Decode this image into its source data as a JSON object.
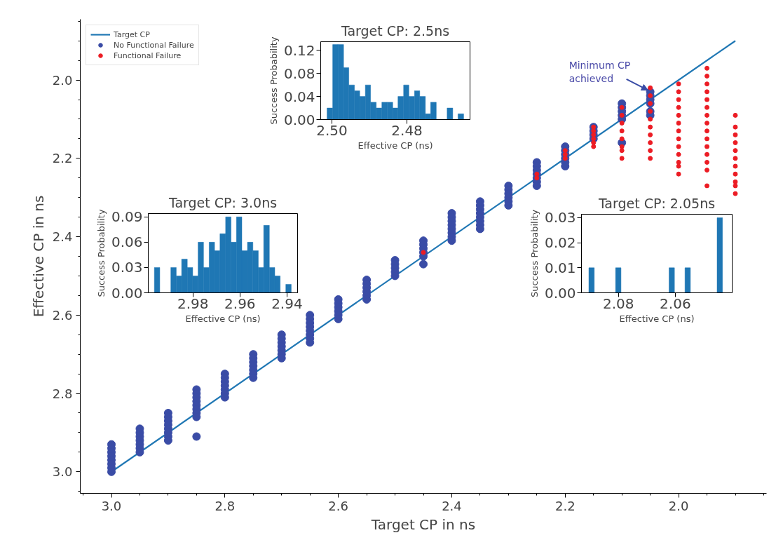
{
  "chart_data": [
    {
      "type": "scatter",
      "xlabel": "Target CP in ns",
      "ylabel": "Effective CP in ns",
      "xlim": [
        3.055,
        1.845
      ],
      "ylim": [
        3.055,
        1.845
      ],
      "legend": "top left",
      "xticks": [
        {
          "value": 3.05,
          "label": null
        },
        {
          "value": 3.0,
          "label": "3.0"
        },
        {
          "value": 2.95,
          "label": null
        },
        {
          "value": 2.9,
          "label": null
        },
        {
          "value": 2.85,
          "label": null
        },
        {
          "value": 2.8,
          "label": "2.8"
        },
        {
          "value": 2.75,
          "label": null
        },
        {
          "value": 2.7,
          "label": null
        },
        {
          "value": 2.65,
          "label": null
        },
        {
          "value": 2.6,
          "label": "2.6"
        },
        {
          "value": 2.55,
          "label": null
        },
        {
          "value": 2.5,
          "label": null
        },
        {
          "value": 2.45,
          "label": null
        },
        {
          "value": 2.4,
          "label": "2.4"
        },
        {
          "value": 2.35,
          "label": null
        },
        {
          "value": 2.3,
          "label": null
        },
        {
          "value": 2.25,
          "label": null
        },
        {
          "value": 2.2,
          "label": "2.2"
        },
        {
          "value": 2.15,
          "label": null
        },
        {
          "value": 2.1,
          "label": null
        },
        {
          "value": 2.05,
          "label": null
        },
        {
          "value": 2.0,
          "label": "2.0"
        },
        {
          "value": 1.95,
          "label": null
        },
        {
          "value": 1.9,
          "label": null
        },
        {
          "value": 1.85,
          "label": null
        }
      ],
      "yticks": [
        {
          "value": 3.05,
          "label": null
        },
        {
          "value": 3.0,
          "label": "3.0"
        },
        {
          "value": 2.95,
          "label": null
        },
        {
          "value": 2.9,
          "label": null
        },
        {
          "value": 2.85,
          "label": null
        },
        {
          "value": 2.8,
          "label": "2.8"
        },
        {
          "value": 2.75,
          "label": null
        },
        {
          "value": 2.7,
          "label": null
        },
        {
          "value": 2.65,
          "label": null
        },
        {
          "value": 2.6,
          "label": "2.6"
        },
        {
          "value": 2.55,
          "label": null
        },
        {
          "value": 2.5,
          "label": null
        },
        {
          "value": 2.45,
          "label": null
        },
        {
          "value": 2.4,
          "label": "2.4"
        },
        {
          "value": 2.35,
          "label": null
        },
        {
          "value": 2.3,
          "label": null
        },
        {
          "value": 2.25,
          "label": null
        },
        {
          "value": 2.2,
          "label": "2.2"
        },
        {
          "value": 2.15,
          "label": null
        },
        {
          "value": 2.1,
          "label": null
        },
        {
          "value": 2.05,
          "label": null
        },
        {
          "value": 2.0,
          "label": "2.0"
        },
        {
          "value": 1.95,
          "label": null
        },
        {
          "value": 1.9,
          "label": null
        },
        {
          "value": 1.85,
          "label": null
        }
      ],
      "series": [
        {
          "name": "Target CP",
          "type": "line",
          "color": "#1f77b4",
          "x": [
            3.0,
            1.9
          ],
          "values": [
            3.0,
            1.9
          ]
        },
        {
          "name": "No Functional Failure",
          "type": "scatter",
          "marker": "circle",
          "color": "#3a4ca6",
          "x": [
            3.0,
            3.0,
            3.0,
            3.0,
            3.0,
            3.0,
            3.0,
            3.0,
            2.95,
            2.95,
            2.95,
            2.95,
            2.95,
            2.95,
            2.95,
            2.9,
            2.9,
            2.9,
            2.9,
            2.9,
            2.9,
            2.9,
            2.9,
            2.85,
            2.85,
            2.85,
            2.85,
            2.85,
            2.85,
            2.85,
            2.85,
            2.85,
            2.8,
            2.8,
            2.8,
            2.8,
            2.8,
            2.8,
            2.8,
            2.75,
            2.75,
            2.75,
            2.75,
            2.75,
            2.75,
            2.75,
            2.7,
            2.7,
            2.7,
            2.7,
            2.7,
            2.7,
            2.7,
            2.65,
            2.65,
            2.65,
            2.65,
            2.65,
            2.65,
            2.65,
            2.65,
            2.6,
            2.6,
            2.6,
            2.6,
            2.6,
            2.6,
            2.55,
            2.55,
            2.55,
            2.55,
            2.55,
            2.55,
            2.5,
            2.5,
            2.5,
            2.5,
            2.5,
            2.45,
            2.45,
            2.45,
            2.45,
            2.45,
            2.45,
            2.4,
            2.4,
            2.4,
            2.4,
            2.4,
            2.4,
            2.4,
            2.4,
            2.35,
            2.35,
            2.35,
            2.35,
            2.35,
            2.35,
            2.35,
            2.35,
            2.3,
            2.3,
            2.3,
            2.3,
            2.3,
            2.3,
            2.25,
            2.25,
            2.25,
            2.25,
            2.25,
            2.25,
            2.25,
            2.2,
            2.2,
            2.2,
            2.2,
            2.2,
            2.2,
            2.15,
            2.15,
            2.15,
            2.15,
            2.1,
            2.1,
            2.1,
            2.1,
            2.1,
            2.1,
            2.05,
            2.05,
            2.05,
            2.05,
            2.05,
            2.05
          ],
          "values": [
            2.93,
            2.94,
            2.95,
            2.96,
            2.97,
            2.98,
            2.99,
            3.0,
            2.89,
            2.9,
            2.91,
            2.92,
            2.93,
            2.94,
            2.95,
            2.85,
            2.86,
            2.87,
            2.88,
            2.89,
            2.9,
            2.91,
            2.92,
            2.79,
            2.8,
            2.81,
            2.82,
            2.83,
            2.84,
            2.85,
            2.86,
            2.91,
            2.75,
            2.76,
            2.77,
            2.78,
            2.79,
            2.8,
            2.81,
            2.7,
            2.71,
            2.72,
            2.73,
            2.74,
            2.75,
            2.76,
            2.65,
            2.66,
            2.67,
            2.68,
            2.69,
            2.7,
            2.71,
            2.6,
            2.61,
            2.62,
            2.63,
            2.64,
            2.65,
            2.66,
            2.67,
            2.56,
            2.57,
            2.58,
            2.59,
            2.6,
            2.61,
            2.51,
            2.52,
            2.53,
            2.54,
            2.55,
            2.56,
            2.46,
            2.47,
            2.48,
            2.49,
            2.5,
            2.41,
            2.42,
            2.43,
            2.44,
            2.45,
            2.47,
            2.34,
            2.35,
            2.36,
            2.37,
            2.38,
            2.39,
            2.4,
            2.41,
            2.31,
            2.32,
            2.33,
            2.34,
            2.35,
            2.36,
            2.37,
            2.38,
            2.27,
            2.28,
            2.29,
            2.3,
            2.31,
            2.32,
            2.21,
            2.22,
            2.23,
            2.24,
            2.25,
            2.26,
            2.27,
            2.17,
            2.18,
            2.19,
            2.2,
            2.21,
            2.22,
            2.12,
            2.13,
            2.14,
            2.15,
            2.06,
            2.07,
            2.08,
            2.09,
            2.1,
            2.16,
            2.03,
            2.04,
            2.05,
            2.06,
            2.08,
            2.09
          ]
        },
        {
          "name": "Functional Failure",
          "type": "scatter",
          "marker": "circle",
          "color": "#ec1c24",
          "x": [
            2.45,
            2.25,
            2.25,
            2.2,
            2.2,
            2.2,
            2.15,
            2.15,
            2.15,
            2.15,
            2.15,
            2.15,
            2.1,
            2.1,
            2.1,
            2.1,
            2.1,
            2.1,
            2.1,
            2.1,
            2.05,
            2.05,
            2.05,
            2.05,
            2.05,
            2.05,
            2.05,
            2.05,
            2.05,
            2.05,
            2.0,
            2.0,
            2.0,
            2.0,
            2.0,
            2.0,
            2.0,
            2.0,
            2.0,
            2.0,
            2.0,
            2.0,
            2.0,
            1.95,
            1.95,
            1.95,
            1.95,
            1.95,
            1.95,
            1.95,
            1.95,
            1.95,
            1.95,
            1.95,
            1.95,
            1.95,
            1.95,
            1.95,
            1.9,
            1.9,
            1.9,
            1.9,
            1.9,
            1.9,
            1.9,
            1.9,
            1.9,
            1.9,
            1.9
          ],
          "values": [
            2.44,
            2.24,
            2.25,
            2.18,
            2.19,
            2.2,
            2.12,
            2.13,
            2.14,
            2.15,
            2.16,
            2.17,
            2.07,
            2.09,
            2.11,
            2.13,
            2.15,
            2.17,
            2.18,
            2.2,
            2.02,
            2.04,
            2.06,
            2.08,
            2.1,
            2.12,
            2.14,
            2.16,
            2.18,
            2.2,
            2.01,
            2.03,
            2.05,
            2.07,
            2.09,
            2.11,
            2.13,
            2.15,
            2.17,
            2.19,
            2.21,
            2.22,
            2.24,
            1.97,
            1.99,
            2.01,
            2.03,
            2.05,
            2.07,
            2.09,
            2.11,
            2.13,
            2.15,
            2.17,
            2.19,
            2.21,
            2.23,
            2.27,
            2.09,
            2.12,
            2.14,
            2.16,
            2.18,
            2.2,
            2.22,
            2.24,
            2.26,
            2.27,
            2.29
          ]
        }
      ],
      "annotations": [
        {
          "text": "Minimum CP achieved",
          "x": 2.05,
          "y": 2.03
        }
      ]
    },
    {
      "type": "histogram",
      "title": "Target CP: 3.0ns",
      "xlabel": "Effective CP (ns)",
      "ylabel": "Success Probability",
      "color": "#1f77b4",
      "xlim": [
        2.999,
        2.9355
      ],
      "ylim": [
        0,
        0.094
      ],
      "xticks": [
        2.98,
        2.96,
        2.94
      ],
      "yticks": [
        {
          "value": 0,
          "label": "0.00"
        },
        {
          "value": 0.03,
          "label": "0.03"
        },
        {
          "value": 0.06,
          "label": "0.06"
        },
        {
          "value": 0.09,
          "label": "0.09"
        }
      ],
      "bins": [
        2.9964,
        2.9941,
        2.9917,
        2.9894,
        2.9871,
        2.9848,
        2.9824,
        2.9801,
        2.9778,
        2.9755,
        2.9731,
        2.9708,
        2.9685,
        2.9661,
        2.9638,
        2.9615,
        2.9592,
        2.9568,
        2.9545,
        2.9522,
        2.9499,
        2.9475,
        2.9452,
        2.9429,
        2.9405,
        2.9382
      ],
      "values": [
        0.03,
        0,
        0,
        0.03,
        0.02,
        0.04,
        0.03,
        0.02,
        0.06,
        0.03,
        0.06,
        0.05,
        0.07,
        0.09,
        0.06,
        0.09,
        0.05,
        0.06,
        0.05,
        0.03,
        0.08,
        0.03,
        0.02,
        0,
        0.01
      ]
    },
    {
      "type": "histogram",
      "title": "Target CP: 2.5ns",
      "xlabel": "Effective CP (ns)",
      "ylabel": "Success Probability",
      "color": "#1f77b4",
      "xlim": [
        2.503,
        2.4632
      ],
      "ylim": [
        0,
        0.135
      ],
      "xticks": [
        {
          "value": 2.5,
          "label": "2.50"
        },
        2.48
      ],
      "yticks": [
        {
          "value": 0,
          "label": "0.00"
        },
        {
          "value": 0.04,
          "label": "0.04"
        },
        {
          "value": 0.08,
          "label": "0.08"
        },
        {
          "value": 0.12,
          "label": "0.12"
        }
      ],
      "bins": [
        2.5013,
        2.4998,
        2.4984,
        2.4969,
        2.4955,
        2.494,
        2.4926,
        2.4911,
        2.4897,
        2.4882,
        2.4867,
        2.4853,
        2.4838,
        2.4824,
        2.4809,
        2.4795,
        2.478,
        2.4766,
        2.4751,
        2.4737,
        2.4722,
        2.4707,
        2.4693,
        2.4678,
        2.4664,
        2.4649
      ],
      "values": [
        0.02,
        0.13,
        0.13,
        0.09,
        0.06,
        0.05,
        0.04,
        0.06,
        0.03,
        0.02,
        0.03,
        0.03,
        0.02,
        0.04,
        0.06,
        0.04,
        0.05,
        0.04,
        0.01,
        0.03,
        0,
        0,
        0.02,
        0,
        0.01
      ]
    },
    {
      "type": "histogram",
      "title": "Target CP: 2.05ns",
      "xlabel": "Effective CP (ns)",
      "ylabel": "Success Probability",
      "color": "#1f77b4",
      "xlim": [
        2.093,
        2.04
      ],
      "ylim": [
        0,
        0.0314
      ],
      "xticks": [
        2.08,
        2.06
      ],
      "yticks": [
        {
          "value": 0,
          "label": "0.00"
        },
        {
          "value": 0.01,
          "label": "0.01"
        },
        {
          "value": 0.02,
          "label": "0.02"
        },
        {
          "value": 0.03,
          "label": "0.03"
        }
      ],
      "bins": [
        2.0904,
        2.0885,
        2.0866,
        2.0848,
        2.0829,
        2.081,
        2.0791,
        2.0772,
        2.0754,
        2.0735,
        2.0716,
        2.0697,
        2.0678,
        2.066,
        2.0641,
        2.0622,
        2.0603,
        2.0584,
        2.0566,
        2.0547,
        2.0528,
        2.0509,
        2.049,
        2.0472,
        2.0453,
        2.0434
      ],
      "values": [
        0.01,
        0,
        0,
        0,
        0,
        0.01,
        0,
        0,
        0,
        0,
        0,
        0,
        0,
        0,
        0,
        0.01,
        0,
        0,
        0.01,
        0,
        0,
        0,
        0,
        0,
        0.03
      ]
    }
  ]
}
